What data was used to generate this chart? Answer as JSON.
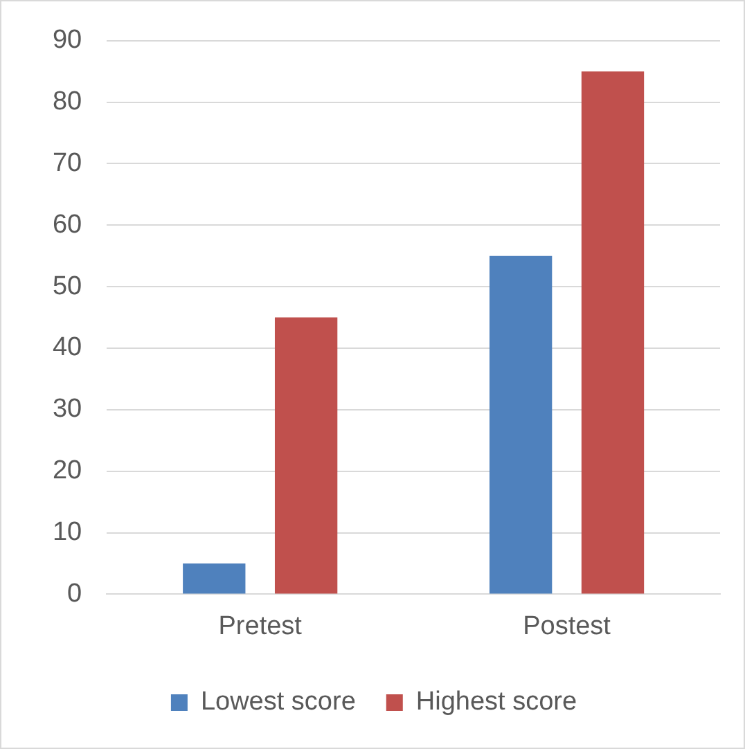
{
  "chart_data": {
    "type": "bar",
    "categories": [
      "Pretest",
      "Postest"
    ],
    "series": [
      {
        "name": "Lowest score",
        "color": "#4f81bd",
        "values": [
          5,
          55
        ]
      },
      {
        "name": "Highest score",
        "color": "#c0504d",
        "values": [
          45,
          85
        ]
      }
    ],
    "ylim": [
      0,
      90
    ],
    "yticks": [
      0,
      10,
      20,
      30,
      40,
      50,
      60,
      70,
      80,
      90
    ],
    "grid": "y",
    "legend": "bottom"
  }
}
